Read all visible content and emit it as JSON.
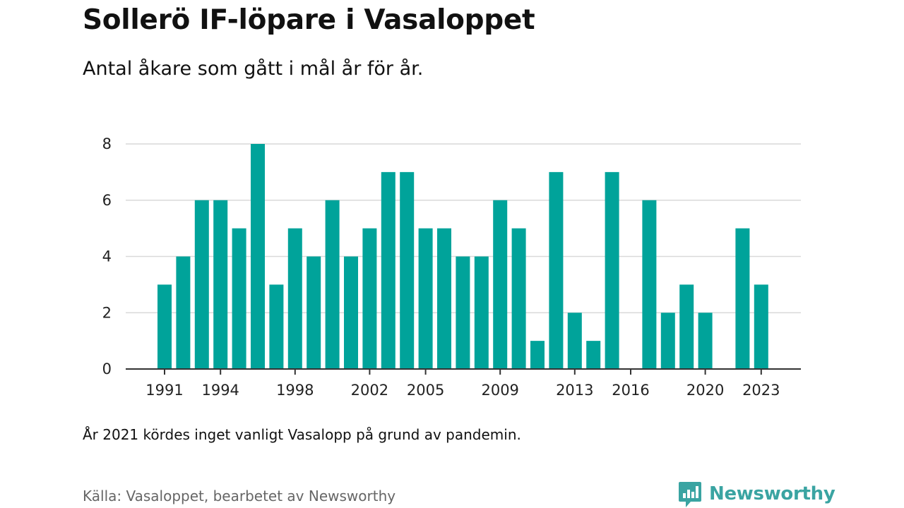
{
  "header": {
    "title": "Sollerö IF-löpare i Vasaloppet",
    "subtitle": "Antal åkare som gått i mål år för år."
  },
  "chart_data": {
    "type": "bar",
    "x": [
      1991,
      1992,
      1993,
      1994,
      1995,
      1996,
      1997,
      1998,
      1999,
      2000,
      2001,
      2002,
      2003,
      2004,
      2005,
      2006,
      2007,
      2008,
      2009,
      2010,
      2011,
      2012,
      2013,
      2014,
      2015,
      2016,
      2017,
      2018,
      2019,
      2020,
      2021,
      2022,
      2023
    ],
    "values": [
      3,
      4,
      6,
      6,
      5,
      8,
      3,
      5,
      4,
      6,
      4,
      5,
      7,
      7,
      5,
      5,
      4,
      4,
      6,
      5,
      1,
      7,
      2,
      1,
      7,
      0,
      6,
      2,
      3,
      2,
      null,
      5,
      3
    ],
    "x_tick_labels": [
      "1991",
      "1994",
      "1998",
      "2002",
      "2005",
      "2009",
      "2013",
      "2016",
      "2020",
      "2023"
    ],
    "y_ticks": [
      0,
      2,
      4,
      6,
      8
    ],
    "ylim": [
      0,
      8
    ],
    "bar_color": "#00a39a",
    "grid": true,
    "legend": "none"
  },
  "footer": {
    "note": "År 2021 kördes inget vanligt Vasalopp på grund av pandemin.",
    "source": "Källa: Vasaloppet, bearbetet av Newsworthy",
    "brand": "Newsworthy",
    "brand_color": "#3aa4a2",
    "brand_icon": "bar-chart-speech-bubble-icon"
  }
}
